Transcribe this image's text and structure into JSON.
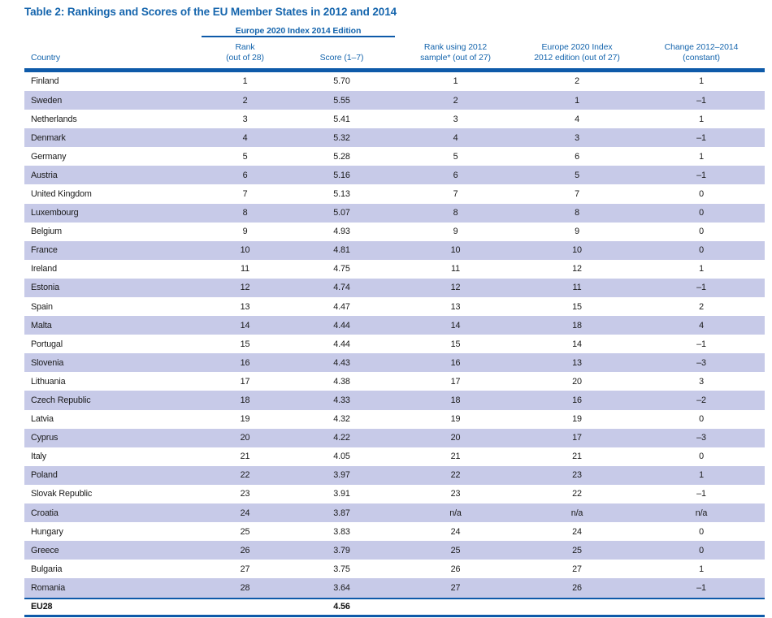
{
  "title": "Table 2: Rankings and Scores of the EU Member States in 2012 and 2014",
  "group_header": "Europe 2020 Index 2014 Edition",
  "columns": [
    {
      "lines": [
        "Country"
      ]
    },
    {
      "lines": [
        "Rank",
        "(out of 28)"
      ]
    },
    {
      "lines": [
        "Score (1–7)"
      ]
    },
    {
      "lines": [
        "Rank using 2012",
        "sample* (out of 27)"
      ]
    },
    {
      "lines": [
        "Europe 2020 Index",
        "2012 edition (out of 27)"
      ]
    },
    {
      "lines": [
        "Change 2012–2014",
        "(constant)"
      ]
    }
  ],
  "rows": [
    {
      "country": "Finland",
      "rank_2014": "1",
      "score_2014": "5.70",
      "rank_2012_sample": "1",
      "rank_2012_edition": "2",
      "change": "1"
    },
    {
      "country": "Sweden",
      "rank_2014": "2",
      "score_2014": "5.55",
      "rank_2012_sample": "2",
      "rank_2012_edition": "1",
      "change": "–1"
    },
    {
      "country": "Netherlands",
      "rank_2014": "3",
      "score_2014": "5.41",
      "rank_2012_sample": "3",
      "rank_2012_edition": "4",
      "change": "1"
    },
    {
      "country": "Denmark",
      "rank_2014": "4",
      "score_2014": "5.32",
      "rank_2012_sample": "4",
      "rank_2012_edition": "3",
      "change": "–1"
    },
    {
      "country": "Germany",
      "rank_2014": "5",
      "score_2014": "5.28",
      "rank_2012_sample": "5",
      "rank_2012_edition": "6",
      "change": "1"
    },
    {
      "country": "Austria",
      "rank_2014": "6",
      "score_2014": "5.16",
      "rank_2012_sample": "6",
      "rank_2012_edition": "5",
      "change": "–1"
    },
    {
      "country": "United Kingdom",
      "rank_2014": "7",
      "score_2014": "5.13",
      "rank_2012_sample": "7",
      "rank_2012_edition": "7",
      "change": "0"
    },
    {
      "country": "Luxembourg",
      "rank_2014": "8",
      "score_2014": "5.07",
      "rank_2012_sample": "8",
      "rank_2012_edition": "8",
      "change": "0"
    },
    {
      "country": "Belgium",
      "rank_2014": "9",
      "score_2014": "4.93",
      "rank_2012_sample": "9",
      "rank_2012_edition": "9",
      "change": "0"
    },
    {
      "country": "France",
      "rank_2014": "10",
      "score_2014": "4.81",
      "rank_2012_sample": "10",
      "rank_2012_edition": "10",
      "change": "0"
    },
    {
      "country": "Ireland",
      "rank_2014": "11",
      "score_2014": "4.75",
      "rank_2012_sample": "11",
      "rank_2012_edition": "12",
      "change": "1"
    },
    {
      "country": "Estonia",
      "rank_2014": "12",
      "score_2014": "4.74",
      "rank_2012_sample": "12",
      "rank_2012_edition": "11",
      "change": "–1"
    },
    {
      "country": "Spain",
      "rank_2014": "13",
      "score_2014": "4.47",
      "rank_2012_sample": "13",
      "rank_2012_edition": "15",
      "change": "2"
    },
    {
      "country": "Malta",
      "rank_2014": "14",
      "score_2014": "4.44",
      "rank_2012_sample": "14",
      "rank_2012_edition": "18",
      "change": "4"
    },
    {
      "country": "Portugal",
      "rank_2014": "15",
      "score_2014": "4.44",
      "rank_2012_sample": "15",
      "rank_2012_edition": "14",
      "change": "–1"
    },
    {
      "country": "Slovenia",
      "rank_2014": "16",
      "score_2014": "4.43",
      "rank_2012_sample": "16",
      "rank_2012_edition": "13",
      "change": "–3"
    },
    {
      "country": "Lithuania",
      "rank_2014": "17",
      "score_2014": "4.38",
      "rank_2012_sample": "17",
      "rank_2012_edition": "20",
      "change": "3"
    },
    {
      "country": "Czech Republic",
      "rank_2014": "18",
      "score_2014": "4.33",
      "rank_2012_sample": "18",
      "rank_2012_edition": "16",
      "change": "–2"
    },
    {
      "country": "Latvia",
      "rank_2014": "19",
      "score_2014": "4.32",
      "rank_2012_sample": "19",
      "rank_2012_edition": "19",
      "change": "0"
    },
    {
      "country": "Cyprus",
      "rank_2014": "20",
      "score_2014": "4.22",
      "rank_2012_sample": "20",
      "rank_2012_edition": "17",
      "change": "–3"
    },
    {
      "country": "Italy",
      "rank_2014": "21",
      "score_2014": "4.05",
      "rank_2012_sample": "21",
      "rank_2012_edition": "21",
      "change": "0"
    },
    {
      "country": "Poland",
      "rank_2014": "22",
      "score_2014": "3.97",
      "rank_2012_sample": "22",
      "rank_2012_edition": "23",
      "change": "1"
    },
    {
      "country": "Slovak Republic",
      "rank_2014": "23",
      "score_2014": "3.91",
      "rank_2012_sample": "23",
      "rank_2012_edition": "22",
      "change": "–1"
    },
    {
      "country": "Croatia",
      "rank_2014": "24",
      "score_2014": "3.87",
      "rank_2012_sample": "n/a",
      "rank_2012_edition": "n/a",
      "change": "n/a"
    },
    {
      "country": "Hungary",
      "rank_2014": "25",
      "score_2014": "3.83",
      "rank_2012_sample": "24",
      "rank_2012_edition": "24",
      "change": "0"
    },
    {
      "country": "Greece",
      "rank_2014": "26",
      "score_2014": "3.79",
      "rank_2012_sample": "25",
      "rank_2012_edition": "25",
      "change": "0"
    },
    {
      "country": "Bulgaria",
      "rank_2014": "27",
      "score_2014": "3.75",
      "rank_2012_sample": "26",
      "rank_2012_edition": "27",
      "change": "1"
    },
    {
      "country": "Romania",
      "rank_2014": "28",
      "score_2014": "3.64",
      "rank_2012_sample": "27",
      "rank_2012_edition": "26",
      "change": "–1"
    }
  ],
  "footer": {
    "country": "EU28",
    "rank_2014": "",
    "score_2014": "4.56",
    "rank_2012_sample": "",
    "rank_2012_edition": "",
    "change": ""
  },
  "colors": {
    "accent_blue": "#1565AD",
    "rule_blue": "#0E5AA9",
    "stripe_lavender": "#C7CAE8",
    "body_text": "#1A1A1A"
  }
}
